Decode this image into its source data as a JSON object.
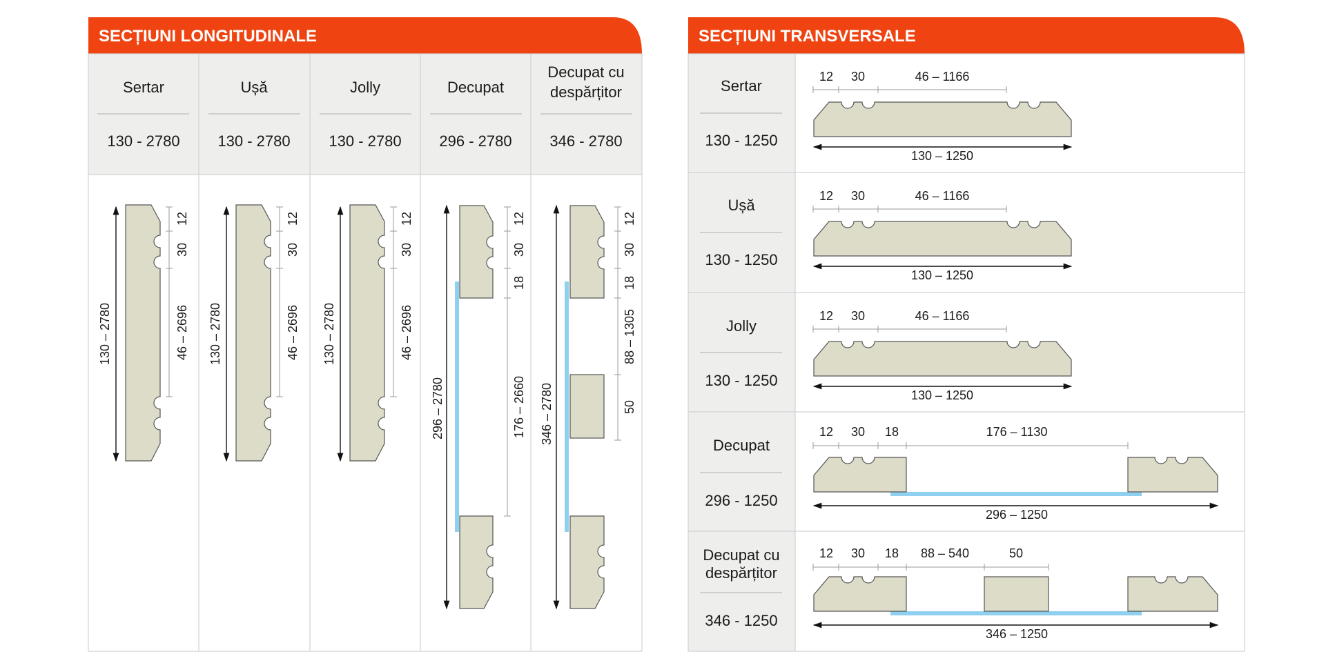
{
  "colors": {
    "header": "#ef4412",
    "header_text": "#ffffff",
    "cell_bg": "#eeeeed",
    "panel": "#dcdcc8",
    "glass": "#8fd0f0"
  },
  "left": {
    "title": "SECȚIUNI LONGITUDINALE",
    "columns": [
      {
        "name": "Sertar",
        "range": "130 - 2780",
        "overall": "130 – 2780",
        "d12": "12",
        "d30": "30",
        "span": "46 – 2696"
      },
      {
        "name": "Ușă",
        "range": "130 - 2780",
        "overall": "130 – 2780",
        "d12": "12",
        "d30": "30",
        "span": "46 – 2696"
      },
      {
        "name": "Jolly",
        "range": "130 - 2780",
        "overall": "130 – 2780",
        "d12": "12",
        "d30": "30",
        "span": "46 – 2696"
      },
      {
        "name": "Decupat",
        "range": "296 - 2780",
        "overall": "296 – 2780",
        "d12": "12",
        "d30": "30",
        "d18": "18",
        "span": "176 – 2660"
      },
      {
        "name_line1": "Decupat cu",
        "name_line2": "despărțitor",
        "range": "346 - 2780",
        "overall": "346 – 2780",
        "d12": "12",
        "d30": "30",
        "d18": "18",
        "span": "88 – 1305",
        "d50": "50"
      }
    ]
  },
  "right": {
    "title": "SECȚIUNI TRANSVERSALE",
    "rows": [
      {
        "name": "Sertar",
        "range": "130 - 1250",
        "d12": "12",
        "d30": "30",
        "span": "46 – 1166",
        "overall": "130 – 1250"
      },
      {
        "name": "Ușă",
        "range": "130 - 1250",
        "d12": "12",
        "d30": "30",
        "span": "46 – 1166",
        "overall": "130 – 1250"
      },
      {
        "name": "Jolly",
        "range": "130 - 1250",
        "d12": "12",
        "d30": "30",
        "span": "46 – 1166",
        "overall": "130 – 1250"
      },
      {
        "name": "Decupat",
        "range": "296 - 1250",
        "d12": "12",
        "d30": "30",
        "d18": "18",
        "span": "176 – 1130",
        "overall": "296 – 1250"
      },
      {
        "name_line1": "Decupat cu",
        "name_line2": "despărțitor",
        "range": "346 - 1250",
        "d12": "12",
        "d30": "30",
        "d18": "18",
        "span": "88 – 540",
        "d50": "50",
        "overall": "346 – 1250"
      }
    ]
  }
}
